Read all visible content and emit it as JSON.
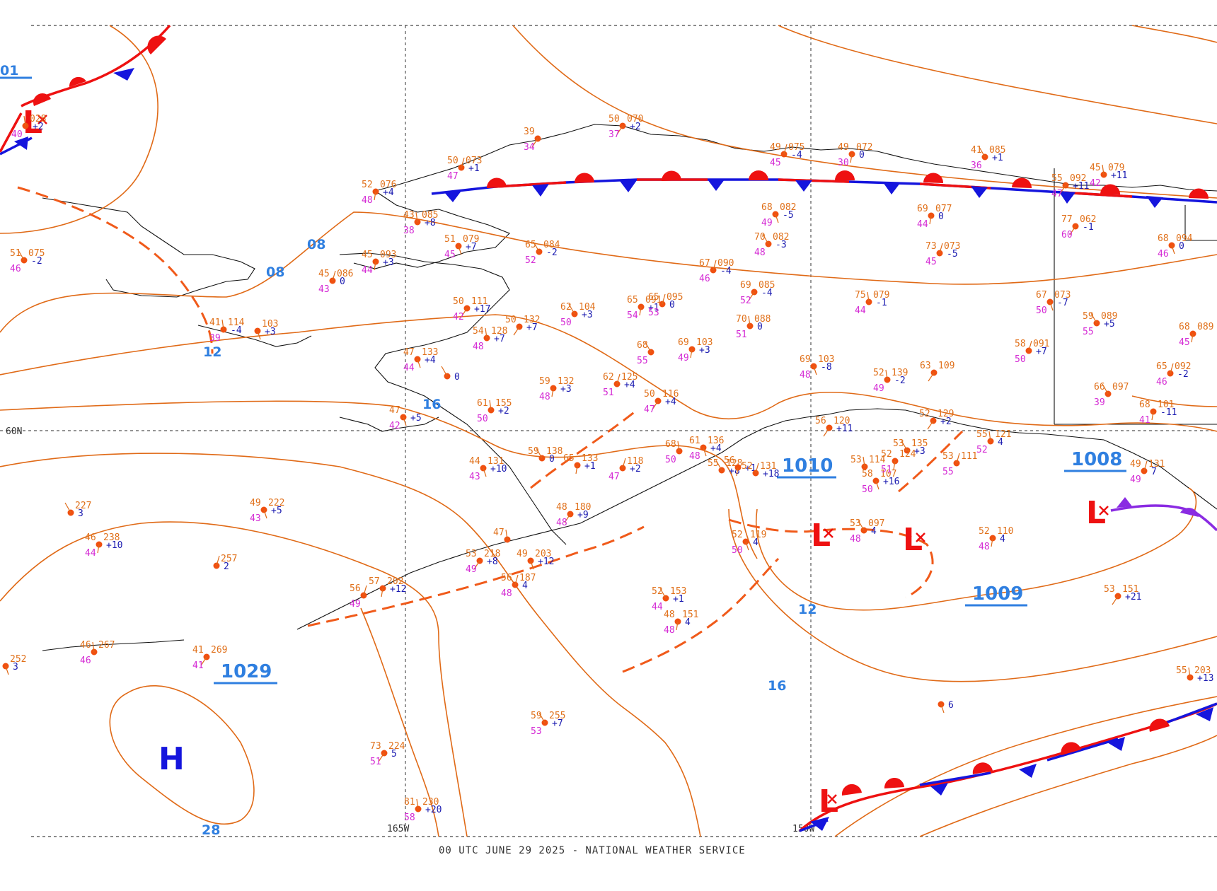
{
  "footer": "00 UTC JUNE 29 2025 - NATIONAL WEATHER SERVICE",
  "grid_labels": {
    "lat_60": "60N",
    "lon_165": "165W",
    "lon_150": "150W"
  },
  "isobar_labels": [
    "01",
    "08",
    "08",
    "12",
    "16",
    "12",
    "16",
    "28"
  ],
  "pressure_labels": [
    "1029",
    "1010",
    "1009",
    "1008"
  ],
  "centers": {
    "low": "L",
    "high": "H"
  },
  "colors": {
    "isobar": "#e06a17",
    "label_blue": "#2f7fe0",
    "warm_front": "#ee1111",
    "cold_front": "#1515dd",
    "occluded_front": "#8a2be2",
    "temp": "#e0701a",
    "dewpoint": "#d42ad4",
    "pressure_tendency": "#1a1ab0",
    "coast": "#111111"
  },
  "stations": [
    {
      "t": "51",
      "p": "075",
      "d": "46",
      "tend": "-2"
    },
    {
      "t": "52",
      "p": "076",
      "d": "48",
      "tend": "+4"
    },
    {
      "t": "50",
      "p": "073",
      "d": "47",
      "tend": "+1"
    },
    {
      "t": "39",
      "p": "",
      "d": "34",
      "tend": ""
    },
    {
      "t": "43",
      "p": "085",
      "d": "38",
      "tend": "+8"
    },
    {
      "t": "51",
      "p": "079",
      "d": "45",
      "tend": "+7"
    },
    {
      "t": "65",
      "p": "084",
      "d": "52",
      "tend": "-2"
    },
    {
      "t": "45",
      "p": "093",
      "d": "44",
      "tend": "+3"
    },
    {
      "t": "45",
      "p": "086",
      "d": "43",
      "tend": "0"
    },
    {
      "t": "50",
      "p": "111",
      "d": "42",
      "tend": "+17"
    },
    {
      "t": "41",
      "p": "114",
      "d": "39",
      "tend": "-4"
    },
    {
      "t": "",
      "p": "103",
      "d": "",
      "tend": "+3"
    },
    {
      "t": "62",
      "p": "104",
      "d": "50",
      "tend": "+3"
    },
    {
      "t": "65",
      "p": "091",
      "d": "54",
      "tend": "+1"
    },
    {
      "t": "65",
      "p": "095",
      "d": "53",
      "tend": "0"
    },
    {
      "t": "50",
      "p": "132",
      "d": "",
      "tend": "+7"
    },
    {
      "t": "54",
      "p": "128",
      "d": "48",
      "tend": "+7"
    },
    {
      "t": "47",
      "p": "133",
      "d": "44",
      "tend": "+4"
    },
    {
      "t": "",
      "p": "",
      "d": "",
      "tend": "0"
    },
    {
      "t": "59",
      "p": "132",
      "d": "48",
      "tend": "+3"
    },
    {
      "t": "62",
      "p": "125",
      "d": "51",
      "tend": "+4"
    },
    {
      "t": "50",
      "p": "116",
      "d": "47",
      "tend": "+4"
    },
    {
      "t": "61",
      "p": "155",
      "d": "50",
      "tend": "+2"
    },
    {
      "t": "47",
      "p": "",
      "d": "42",
      "tend": "+5"
    },
    {
      "t": "68",
      "p": "",
      "d": "55",
      "tend": ""
    },
    {
      "t": "69",
      "p": "103",
      "d": "49",
      "tend": "+3"
    },
    {
      "t": "67",
      "p": "090",
      "d": "46",
      "tend": "-4"
    },
    {
      "t": "69",
      "p": "085",
      "d": "52",
      "tend": "-4"
    },
    {
      "t": "70",
      "p": "088",
      "d": "51",
      "tend": "0"
    },
    {
      "t": "68",
      "p": "082",
      "d": "49",
      "tend": "-5"
    },
    {
      "t": "70",
      "p": "082",
      "d": "48",
      "tend": "-3"
    },
    {
      "t": "69",
      "p": "077",
      "d": "44",
      "tend": "0"
    },
    {
      "t": "73",
      "p": "073",
      "d": "45",
      "tend": "-5"
    },
    {
      "t": "77",
      "p": "062",
      "d": "60",
      "tend": "-1"
    },
    {
      "t": "75",
      "p": "079",
      "d": "44",
      "tend": "-1"
    },
    {
      "t": "67",
      "p": "073",
      "d": "50",
      "tend": "-7"
    },
    {
      "t": "59",
      "p": "089",
      "d": "55",
      "tend": "+5"
    },
    {
      "t": "68",
      "p": "089",
      "d": "45",
      "tend": ""
    },
    {
      "t": "58",
      "p": "091",
      "d": "50",
      "tend": "+7"
    },
    {
      "t": "63",
      "p": "109",
      "d": "",
      "tend": ""
    },
    {
      "t": "52",
      "p": "139",
      "d": "49",
      "tend": "-2"
    },
    {
      "t": "69",
      "p": "103",
      "d": "48",
      "tend": "-8"
    },
    {
      "t": "66",
      "p": "097",
      "d": "39",
      "tend": ""
    },
    {
      "t": "68",
      "p": "101",
      "d": "41",
      "tend": "-11"
    },
    {
      "t": "65",
      "p": "092",
      "d": "46",
      "tend": "-2"
    },
    {
      "t": "55",
      "p": "092",
      "d": "47",
      "tend": "+11"
    },
    {
      "t": "45",
      "p": "079",
      "d": "42",
      "tend": "+11"
    },
    {
      "t": "68",
      "p": "094",
      "d": "46",
      "tend": "0"
    },
    {
      "t": "41",
      "p": "085",
      "d": "36",
      "tend": "+1"
    },
    {
      "t": "49",
      "p": "072",
      "d": "30",
      "tend": "0"
    },
    {
      "t": "49",
      "p": "075",
      "d": "45",
      "tend": "-4"
    },
    {
      "t": "50",
      "p": "070",
      "d": "37",
      "tend": "+2"
    },
    {
      "t": "",
      "p": "028",
      "d": "40",
      "tend": "+2"
    },
    {
      "t": "44",
      "p": "131",
      "d": "43",
      "tend": "+10"
    },
    {
      "t": "59",
      "p": "138",
      "d": "",
      "tend": "0"
    },
    {
      "t": "65",
      "p": "133",
      "d": "",
      "tend": "+1"
    },
    {
      "t": "",
      "p": "118",
      "d": "47",
      "tend": "+2"
    },
    {
      "t": "48",
      "p": "180",
      "d": "48",
      "tend": "+9"
    },
    {
      "t": "68",
      "p": "",
      "d": "50",
      "tend": ""
    },
    {
      "t": "61",
      "p": "136",
      "d": "48",
      "tend": "+4"
    },
    {
      "t": "55",
      "p": "128",
      "d": "",
      "tend": "+8"
    },
    {
      "t": "56",
      "p": "",
      "d": "",
      "tend": "+1"
    },
    {
      "t": "52",
      "p": "131",
      "d": "",
      "tend": "+18"
    },
    {
      "t": "56",
      "p": "120",
      "d": "",
      "tend": "+11"
    },
    {
      "t": "53",
      "p": "114",
      "d": "",
      "tend": ""
    },
    {
      "t": "58",
      "p": "107",
      "d": "50",
      "tend": "+16"
    },
    {
      "t": "53",
      "p": "135",
      "d": "",
      "tend": "+3"
    },
    {
      "t": "52",
      "p": "124",
      "d": "51",
      "tend": ""
    },
    {
      "t": "53",
      "p": "111",
      "d": "55",
      "tend": ""
    },
    {
      "t": "52",
      "p": "129",
      "d": "",
      "tend": "+2"
    },
    {
      "t": "55",
      "p": "121",
      "d": "52",
      "tend": "4"
    },
    {
      "t": "52",
      "p": "119",
      "d": "50",
      "tend": "4"
    },
    {
      "t": "53",
      "p": "097",
      "d": "48",
      "tend": "4"
    },
    {
      "t": "52",
      "p": "110",
      "d": "48",
      "tend": "4"
    },
    {
      "t": "49",
      "p": "131",
      "d": "49",
      "tend": "7"
    },
    {
      "t": "53",
      "p": "151",
      "d": "",
      "tend": "+21"
    },
    {
      "t": "55",
      "p": "203",
      "d": "",
      "tend": "+13"
    },
    {
      "t": "",
      "p": "",
      "d": "",
      "tend": "6"
    },
    {
      "t": "52",
      "p": "153",
      "d": "44",
      "tend": "+1"
    },
    {
      "t": "48",
      "p": "151",
      "d": "48",
      "tend": "4"
    },
    {
      "t": "56",
      "p": "187",
      "d": "48",
      "tend": "4"
    },
    {
      "t": "53",
      "p": "218",
      "d": "49",
      "tend": "+8"
    },
    {
      "t": "47",
      "p": "",
      "d": "",
      "tend": ""
    },
    {
      "t": "49",
      "p": "203",
      "d": "",
      "tend": "+12"
    },
    {
      "t": "59",
      "p": "255",
      "d": "53",
      "tend": "+7"
    },
    {
      "t": "57",
      "p": "202",
      "d": "",
      "tend": "+12"
    },
    {
      "t": "56",
      "p": "",
      "d": "49",
      "tend": ""
    },
    {
      "t": "73",
      "p": "224",
      "d": "51",
      "tend": "5"
    },
    {
      "t": "81",
      "p": "230",
      "d": "58",
      "tend": "+20"
    },
    {
      "t": "49",
      "p": "222",
      "d": "43",
      "tend": "+5"
    },
    {
      "t": "",
      "p": "227",
      "d": "",
      "tend": "3"
    },
    {
      "t": "46",
      "p": "238",
      "d": "44",
      "tend": "+10"
    },
    {
      "t": "",
      "p": "257",
      "d": "",
      "tend": "2"
    },
    {
      "t": "41",
      "p": "269",
      "d": "41",
      "tend": ""
    },
    {
      "t": "46",
      "p": "267",
      "d": "46",
      "tend": ""
    },
    {
      "t": "",
      "p": "252",
      "d": "",
      "tend": "3"
    }
  ]
}
